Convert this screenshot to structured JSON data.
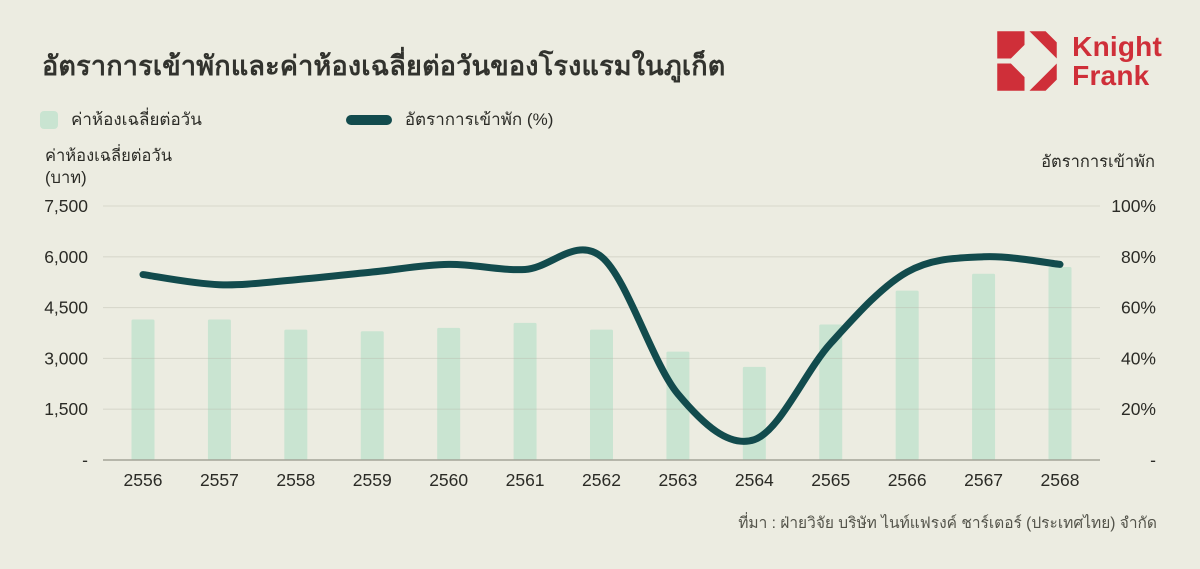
{
  "title": "อัตราการเข้าพักและค่าห้องเฉลี่ยต่อวันของโรงแรมในภูเก็ต",
  "logo": {
    "brand_line1": "Knight",
    "brand_line2": "Frank",
    "red": "#CF2F39"
  },
  "legend": {
    "bar_label": "ค่าห้องเฉลี่ยต่อวัน",
    "line_label": "อัตราการเข้าพัก (%)"
  },
  "axes": {
    "left_title_line1": "ค่าห้องเฉลี่ยต่อวัน",
    "left_title_line2": "(บาท)",
    "right_title": "อัตราการเข้าพัก",
    "left_ticks": [
      "7,500",
      "6,000",
      "4,500",
      "3,000",
      "1,500",
      "-"
    ],
    "right_ticks": [
      "100%",
      "80%",
      "60%",
      "40%",
      "20%",
      "-"
    ]
  },
  "source": "ที่มา : ฝ่ายวิจัย บริษัท ไนท์แฟรงค์ ชาร์เตอร์ (ประเทศไทย) จำกัด",
  "chart_data": {
    "type": "bar+line",
    "title": "อัตราการเข้าพักและค่าห้องเฉลี่ยต่อวันของโรงแรมในภูเก็ต",
    "categories": [
      "2556",
      "2557",
      "2558",
      "2559",
      "2560",
      "2561",
      "2562",
      "2563",
      "2564",
      "2565",
      "2566",
      "2567",
      "2568"
    ],
    "series": [
      {
        "name": "ค่าห้องเฉลี่ยต่อวัน",
        "type": "bar",
        "axis": "left",
        "unit": "บาท",
        "values": [
          4150,
          4150,
          3850,
          3800,
          3900,
          4050,
          3850,
          3200,
          2750,
          4000,
          5000,
          5500,
          5700
        ]
      },
      {
        "name": "อัตราการเข้าพัก",
        "type": "line",
        "axis": "right",
        "unit": "%",
        "values": [
          73,
          69,
          71,
          74,
          77,
          75,
          80,
          26,
          8,
          46,
          74,
          80,
          77
        ]
      }
    ],
    "left_axis": {
      "label": "ค่าห้องเฉลี่ยต่อวัน (บาท)",
      "min": 0,
      "max": 7500,
      "tick_step": 1500
    },
    "right_axis": {
      "label": "อัตราการเข้าพัก",
      "min": 0,
      "max": 100,
      "tick_step": 20
    },
    "grid": true,
    "legend_position": "top-left",
    "colors": {
      "background": "#ECECE1",
      "bar": "#C9E4D1",
      "line": "#124B4D",
      "grid": "#B9B9AC",
      "baseline": "#A3A398",
      "tick_text": "#2B2B26"
    }
  }
}
